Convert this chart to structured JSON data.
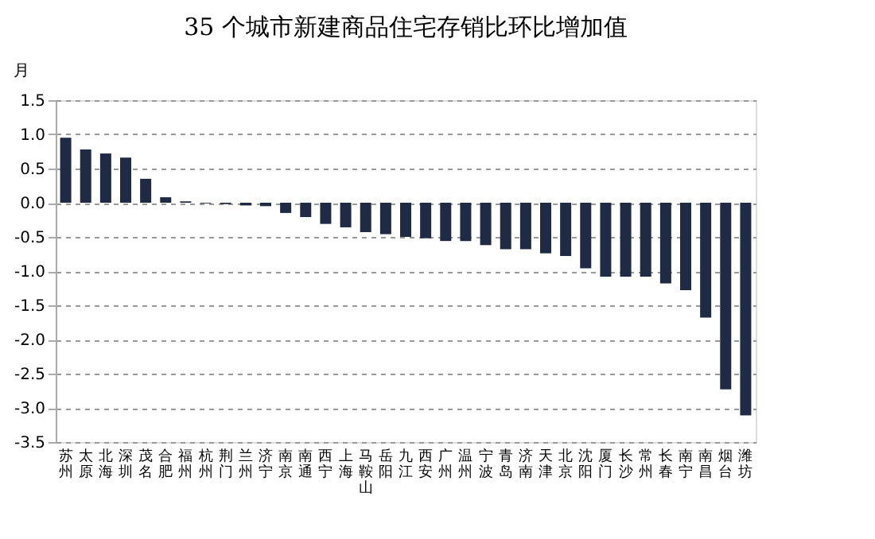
{
  "chart_data": {
    "type": "bar",
    "title": "35 个城市新建商品住宅存销比环比增加值",
    "ylabel": "月",
    "categories": [
      "苏州",
      "太原",
      "北海",
      "深圳",
      "茂名",
      "合肥",
      "福州",
      "杭州",
      "荆门",
      "兰州",
      "济宁",
      "南京",
      "南通",
      "西宁",
      "上海",
      "马鞍山",
      "岳阳",
      "九江",
      "西安",
      "广州",
      "温州",
      "宁波",
      "青岛",
      "济南",
      "天津",
      "北京",
      "沈阳",
      "厦门",
      "长沙",
      "常州",
      "长春",
      "南宁",
      "南昌",
      "烟台",
      "潍坊"
    ],
    "values": [
      0.95,
      0.78,
      0.72,
      0.66,
      0.35,
      0.08,
      0.02,
      -0.01,
      -0.02,
      -0.04,
      -0.05,
      -0.15,
      -0.21,
      -0.31,
      -0.36,
      -0.43,
      -0.46,
      -0.5,
      -0.52,
      -0.56,
      -0.56,
      -0.62,
      -0.68,
      -0.68,
      -0.74,
      -0.78,
      -0.96,
      -1.08,
      -1.08,
      -1.08,
      -1.18,
      -1.28,
      -1.68,
      -2.73,
      -3.11
    ],
    "color": "#1f2a44",
    "ylim": [
      -3.5,
      1.5
    ],
    "yticks": [
      {
        "value": 1.5,
        "label": "1.5"
      },
      {
        "value": 1,
        "label": "1.0"
      },
      {
        "value": 0.5,
        "label": "0.5"
      },
      {
        "value": 0,
        "label": "0.0"
      },
      {
        "value": -0.5,
        "label": "-0.5"
      },
      {
        "value": -1,
        "label": "-1.0"
      },
      {
        "value": -1.5,
        "label": "-1.5"
      },
      {
        "value": -2,
        "label": "-2.0"
      },
      {
        "value": -2.5,
        "label": "-2.5"
      },
      {
        "value": -3,
        "label": "-3.0"
      },
      {
        "value": -3.5,
        "label": "-3.5"
      }
    ],
    "grid": "y"
  }
}
